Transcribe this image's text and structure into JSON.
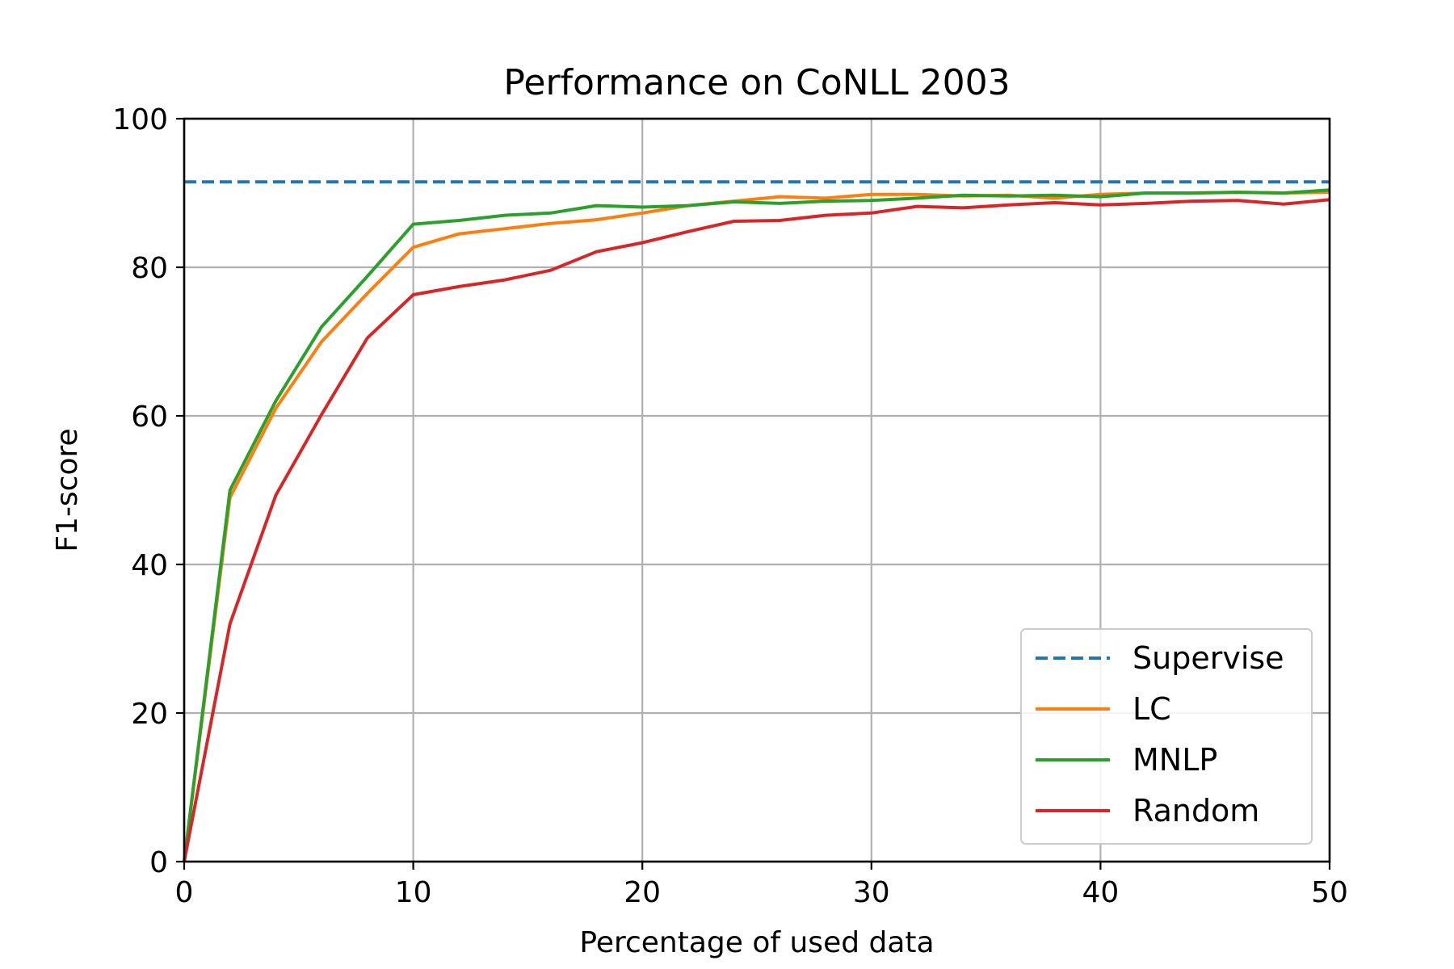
{
  "chart_data": {
    "type": "line",
    "title": "Performance on CoNLL 2003",
    "xlabel": "Percentage of used data",
    "ylabel": "F1-score",
    "xlim": [
      0,
      50
    ],
    "ylim": [
      0,
      100
    ],
    "xticks": [
      "0",
      "10",
      "20",
      "30",
      "40",
      "50"
    ],
    "yticks": [
      "0",
      "20",
      "40",
      "60",
      "80",
      "100"
    ],
    "grid": true,
    "legend_position": "lower-right",
    "series": [
      {
        "name": "Supervise",
        "color": "#1f77b4",
        "style": "dashed",
        "x": [
          0,
          50
        ],
        "y": [
          91.5,
          91.5
        ]
      },
      {
        "name": "LC",
        "color": "#ff7f0e",
        "style": "solid",
        "x": [
          0,
          2,
          4,
          6,
          8,
          10,
          12,
          14,
          16,
          18,
          20,
          22,
          24,
          26,
          28,
          30,
          32,
          34,
          36,
          38,
          40,
          42,
          44,
          46,
          48,
          50
        ],
        "y": [
          0,
          49,
          61,
          70,
          76.5,
          82.7,
          84.5,
          85.2,
          85.9,
          86.4,
          87.3,
          88.3,
          88.9,
          89.5,
          89.3,
          89.8,
          89.8,
          89.6,
          89.7,
          89.3,
          89.8,
          90.0,
          90.0,
          90.1,
          90.0,
          90.1
        ]
      },
      {
        "name": "MNLP",
        "color": "#2ca02c",
        "style": "solid",
        "x": [
          0,
          2,
          4,
          6,
          8,
          10,
          12,
          14,
          16,
          18,
          20,
          22,
          24,
          26,
          28,
          30,
          32,
          34,
          36,
          38,
          40,
          42,
          44,
          46,
          48,
          50
        ],
        "y": [
          0,
          50,
          62,
          72,
          78.8,
          85.8,
          86.3,
          87.0,
          87.3,
          88.3,
          88.1,
          88.3,
          88.8,
          88.6,
          88.9,
          89.0,
          89.3,
          89.7,
          89.6,
          89.7,
          89.5,
          90.0,
          90.0,
          90.1,
          90.0,
          90.4
        ]
      },
      {
        "name": "Random",
        "color": "#d62728",
        "style": "solid",
        "x": [
          0,
          2,
          4,
          6,
          8,
          10,
          12,
          14,
          16,
          18,
          20,
          22,
          24,
          26,
          28,
          30,
          32,
          34,
          36,
          38,
          40,
          42,
          44,
          46,
          48,
          50
        ],
        "y": [
          0,
          32,
          49.3,
          60.2,
          70.5,
          76.3,
          77.4,
          78.3,
          79.6,
          82.1,
          83.3,
          84.8,
          86.2,
          86.3,
          87.0,
          87.3,
          88.2,
          88.0,
          88.4,
          88.7,
          88.4,
          88.6,
          88.9,
          89.0,
          88.5,
          89.1
        ]
      }
    ]
  }
}
